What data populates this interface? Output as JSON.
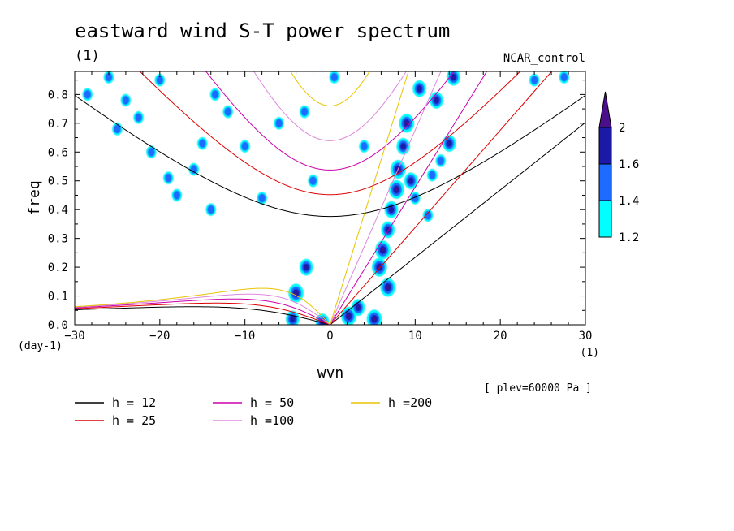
{
  "chart_data": {
    "type": "contour",
    "title": "eastward wind S-T power spectrum",
    "subtitle": "(1)",
    "case_label": "NCAR_control",
    "xlabel": "wvn",
    "ylabel": "freq",
    "x_unit": "(1)",
    "y_unit": "(day-1)",
    "xlim": [
      -30,
      30
    ],
    "ylim": [
      0,
      0.88
    ],
    "x_ticks": [
      -30,
      -20,
      -10,
      0,
      10,
      20,
      30
    ],
    "y_ticks": [
      0.0,
      0.1,
      0.2,
      0.3,
      0.4,
      0.5,
      0.6,
      0.7,
      0.8
    ],
    "plev_note": "[ plev=60000 Pa ]",
    "colorbar": {
      "levels": [
        1.2,
        1.4,
        1.6,
        2
      ],
      "colors": [
        "#00ffff",
        "#1e6bff",
        "#1a1aa6",
        "#4b0f8c"
      ],
      "labels": [
        "1.2",
        "1.4",
        "1.6",
        "2"
      ]
    },
    "dispersion_curves": [
      {
        "name": "h = 12",
        "h": 12,
        "color": "#000000"
      },
      {
        "name": "h = 25",
        "h": 25,
        "color": "#dd0000"
      },
      {
        "name": "h = 50",
        "h": 50,
        "color": "#cc00aa"
      },
      {
        "name": "h =100",
        "h": 100,
        "color": "#dd88dd"
      },
      {
        "name": "h =200",
        "h": 200,
        "color": "#e8c400"
      }
    ],
    "power_blobs": [
      {
        "x": 9.0,
        "y": 0.7,
        "level": 3
      },
      {
        "x": 8.6,
        "y": 0.62,
        "level": 2
      },
      {
        "x": 8.0,
        "y": 0.54,
        "level": 3
      },
      {
        "x": 7.8,
        "y": 0.47,
        "level": 3
      },
      {
        "x": 7.2,
        "y": 0.4,
        "level": 2
      },
      {
        "x": 6.8,
        "y": 0.33,
        "level": 2
      },
      {
        "x": 6.2,
        "y": 0.26,
        "level": 3
      },
      {
        "x": 5.8,
        "y": 0.2,
        "level": 3
      },
      {
        "x": 6.8,
        "y": 0.13,
        "level": 3
      },
      {
        "x": 5.2,
        "y": 0.02,
        "level": 3
      },
      {
        "x": 2.2,
        "y": 0.03,
        "level": 3
      },
      {
        "x": 3.3,
        "y": 0.06,
        "level": 2
      },
      {
        "x": -4.0,
        "y": 0.11,
        "level": 3
      },
      {
        "x": -4.4,
        "y": 0.02,
        "level": 2
      },
      {
        "x": -0.9,
        "y": 0.01,
        "level": 2
      },
      {
        "x": -2.8,
        "y": 0.2,
        "level": 2
      },
      {
        "x": 10.5,
        "y": 0.82,
        "level": 2
      },
      {
        "x": 12.5,
        "y": 0.78,
        "level": 2
      },
      {
        "x": 14.0,
        "y": 0.63,
        "level": 2
      },
      {
        "x": 13.0,
        "y": 0.57,
        "level": 1
      },
      {
        "x": 14.5,
        "y": 0.86,
        "level": 2
      },
      {
        "x": 9.5,
        "y": 0.5,
        "level": 2
      },
      {
        "x": 10.0,
        "y": 0.44,
        "level": 1
      },
      {
        "x": 11.5,
        "y": 0.38,
        "level": 1
      },
      {
        "x": 12.0,
        "y": 0.52,
        "level": 1
      },
      {
        "x": 24.0,
        "y": 0.85,
        "level": 1
      },
      {
        "x": 27.5,
        "y": 0.86,
        "level": 1
      },
      {
        "x": -28.5,
        "y": 0.8,
        "level": 1
      },
      {
        "x": -26.0,
        "y": 0.86,
        "level": 1
      },
      {
        "x": -24.0,
        "y": 0.78,
        "level": 1
      },
      {
        "x": -22.5,
        "y": 0.72,
        "level": 1
      },
      {
        "x": -25.0,
        "y": 0.68,
        "level": 1
      },
      {
        "x": -21.0,
        "y": 0.6,
        "level": 1
      },
      {
        "x": -19.0,
        "y": 0.51,
        "level": 1
      },
      {
        "x": -15.0,
        "y": 0.63,
        "level": 1
      },
      {
        "x": -16.0,
        "y": 0.54,
        "level": 1
      },
      {
        "x": -10.0,
        "y": 0.62,
        "level": 1
      },
      {
        "x": -8.0,
        "y": 0.44,
        "level": 1
      },
      {
        "x": -13.5,
        "y": 0.8,
        "level": 1
      },
      {
        "x": -12.0,
        "y": 0.74,
        "level": 1
      },
      {
        "x": -6.0,
        "y": 0.7,
        "level": 1
      },
      {
        "x": -3.0,
        "y": 0.74,
        "level": 1
      },
      {
        "x": -14.0,
        "y": 0.4,
        "level": 1
      },
      {
        "x": -2.0,
        "y": 0.5,
        "level": 1
      },
      {
        "x": 4.0,
        "y": 0.62,
        "level": 1
      },
      {
        "x": 0.5,
        "y": 0.86,
        "level": 1
      },
      {
        "x": -20.0,
        "y": 0.85,
        "level": 1
      },
      {
        "x": -18.0,
        "y": 0.45,
        "level": 1
      }
    ]
  }
}
